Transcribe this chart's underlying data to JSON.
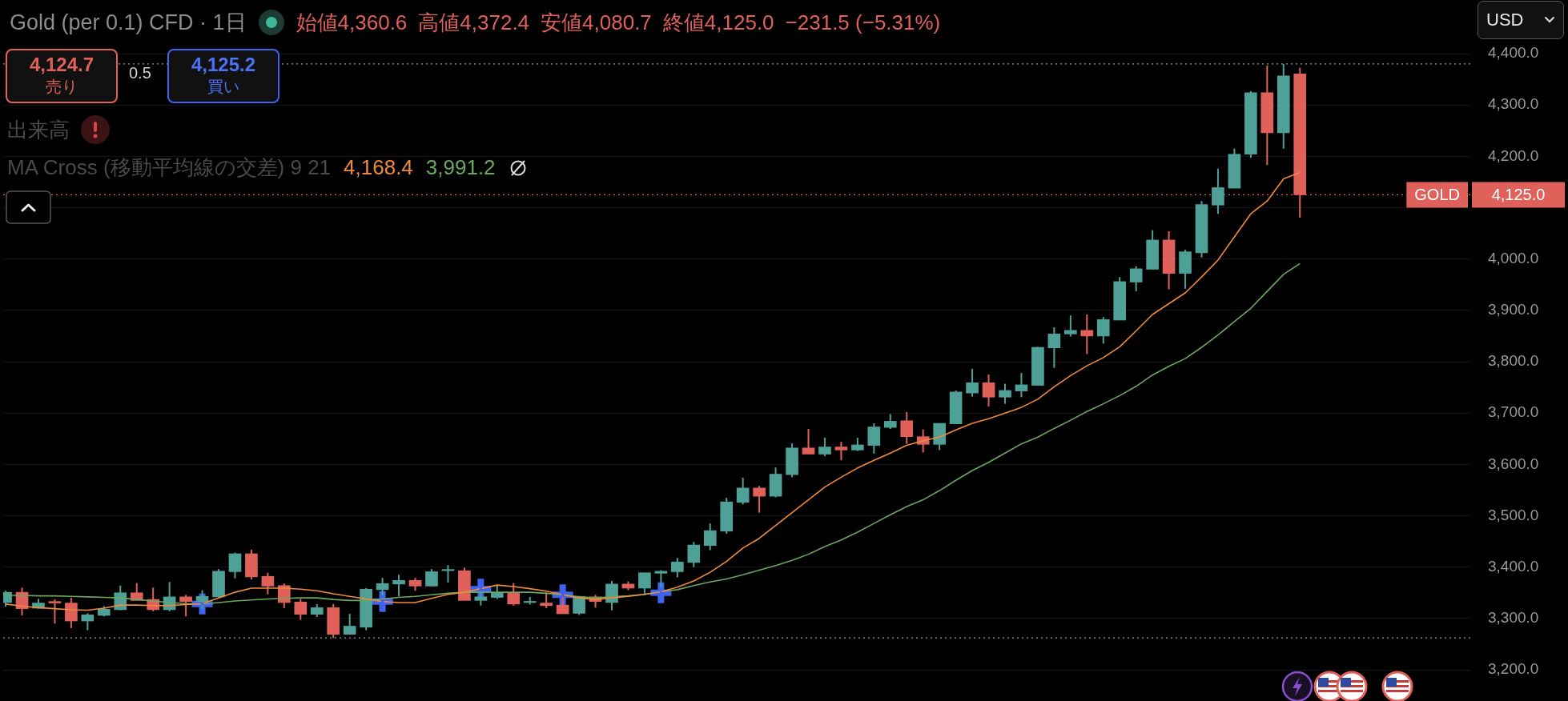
{
  "chart_data": {
    "type": "candlestick",
    "title": "Gold (per 0.1) CFD · 1日",
    "categories": [
      null,
      null,
      null,
      null,
      null,
      null,
      null,
      null,
      null,
      null,
      null,
      null,
      null,
      null,
      null,
      null,
      null,
      null,
      null,
      null,
      null,
      null,
      null,
      null,
      null,
      null,
      null,
      null,
      null,
      null,
      null,
      null,
      null,
      null,
      null,
      null,
      null,
      null,
      null,
      null,
      null,
      null,
      null,
      null,
      null,
      null,
      null,
      null,
      null,
      null,
      null,
      null,
      null,
      null,
      null,
      null,
      null,
      null,
      null,
      null,
      null,
      null,
      null,
      null,
      null,
      null,
      null,
      null,
      null,
      null,
      null,
      null,
      null,
      null,
      null,
      null,
      null,
      null,
      null,
      null
    ],
    "ohlc": [
      [
        3331,
        3354,
        3323,
        3351
      ],
      [
        3351,
        3360,
        3306,
        3319
      ],
      [
        3320,
        3338,
        3319,
        3330
      ],
      [
        3333,
        3337,
        3290,
        3330
      ],
      [
        3330,
        3340,
        3281,
        3295
      ],
      [
        3295,
        3310,
        3277,
        3307
      ],
      [
        3306,
        3324,
        3304,
        3318
      ],
      [
        3317,
        3364,
        3316,
        3350
      ],
      [
        3350,
        3369,
        3335,
        3335
      ],
      [
        3337,
        3360,
        3314,
        3317
      ],
      [
        3317,
        3371,
        3314,
        3342
      ],
      [
        3342,
        3346,
        3304,
        3333
      ],
      [
        3333,
        3355,
        3318,
        3343
      ],
      [
        3342,
        3396,
        3340,
        3392
      ],
      [
        3391,
        3428,
        3378,
        3426
      ],
      [
        3426,
        3434,
        3376,
        3381
      ],
      [
        3382,
        3389,
        3347,
        3363
      ],
      [
        3364,
        3368,
        3320,
        3331
      ],
      [
        3332,
        3338,
        3297,
        3308
      ],
      [
        3308,
        3328,
        3303,
        3321
      ],
      [
        3321,
        3328,
        3262,
        3269
      ],
      [
        3269,
        3309,
        3269,
        3285
      ],
      [
        3283,
        3359,
        3277,
        3357
      ],
      [
        3356,
        3379,
        3345,
        3368
      ],
      [
        3367,
        3385,
        3343,
        3374
      ],
      [
        3374,
        3379,
        3354,
        3363
      ],
      [
        3363,
        3396,
        3362,
        3391
      ],
      [
        3393,
        3404,
        3370,
        3395
      ],
      [
        3393,
        3399,
        3335,
        3335
      ],
      [
        3335,
        3351,
        3325,
        3342
      ],
      [
        3341,
        3364,
        3338,
        3350
      ],
      [
        3350,
        3369,
        3325,
        3328
      ],
      [
        3331,
        3342,
        3327,
        3333
      ],
      [
        3330,
        3351,
        3320,
        3325
      ],
      [
        3326,
        3341,
        3309,
        3309
      ],
      [
        3310,
        3344,
        3307,
        3343
      ],
      [
        3342,
        3346,
        3321,
        3333
      ],
      [
        3331,
        3373,
        3316,
        3367
      ],
      [
        3367,
        3372,
        3355,
        3359
      ],
      [
        3359,
        3389,
        3346,
        3389
      ],
      [
        3388,
        3394,
        3360,
        3392
      ],
      [
        3391,
        3418,
        3380,
        3410
      ],
      [
        3409,
        3449,
        3400,
        3443
      ],
      [
        3442,
        3485,
        3433,
        3471
      ],
      [
        3470,
        3535,
        3465,
        3527
      ],
      [
        3526,
        3574,
        3522,
        3554
      ],
      [
        3554,
        3558,
        3506,
        3538
      ],
      [
        3538,
        3594,
        3536,
        3581
      ],
      [
        3580,
        3641,
        3575,
        3632
      ],
      [
        3632,
        3669,
        3620,
        3620
      ],
      [
        3620,
        3652,
        3616,
        3634
      ],
      [
        3634,
        3644,
        3608,
        3628
      ],
      [
        3628,
        3652,
        3626,
        3638
      ],
      [
        3637,
        3680,
        3621,
        3673
      ],
      [
        3672,
        3698,
        3669,
        3684
      ],
      [
        3685,
        3702,
        3640,
        3654
      ],
      [
        3654,
        3668,
        3623,
        3639
      ],
      [
        3639,
        3680,
        3628,
        3680
      ],
      [
        3679,
        3744,
        3679,
        3741
      ],
      [
        3739,
        3786,
        3732,
        3759
      ],
      [
        3759,
        3775,
        3713,
        3731
      ],
      [
        3731,
        3757,
        3718,
        3744
      ],
      [
        3743,
        3778,
        3731,
        3755
      ],
      [
        3754,
        3829,
        3754,
        3828
      ],
      [
        3827,
        3867,
        3788,
        3854
      ],
      [
        3854,
        3890,
        3849,
        3861
      ],
      [
        3861,
        3892,
        3815,
        3850
      ],
      [
        3850,
        3887,
        3835,
        3882
      ],
      [
        3881,
        3965,
        3881,
        3956
      ],
      [
        3955,
        3986,
        3937,
        3981
      ],
      [
        3980,
        4056,
        3980,
        4037
      ],
      [
        4037,
        4054,
        3941,
        3972
      ],
      [
        3972,
        4018,
        3942,
        4014
      ],
      [
        4012,
        4113,
        4003,
        4106
      ],
      [
        4105,
        4176,
        4088,
        4139
      ],
      [
        4138,
        4215,
        4138,
        4204
      ],
      [
        4204,
        4327,
        4197,
        4324
      ],
      [
        4324,
        4377,
        4183,
        4246
      ],
      [
        4246,
        4380,
        4215,
        4356.5
      ],
      [
        4360.6,
        4372.4,
        4080.7,
        4125.0
      ]
    ],
    "colors": [
      "#4fa197",
      "#e0605a",
      "#4fa197",
      "#e0605a",
      "#e0605a",
      "#4fa197",
      "#4fa197",
      "#4fa197",
      "#e0605a",
      "#e0605a",
      "#4fa197",
      "#e0605a",
      "#4fa197",
      "#4fa197",
      "#4fa197",
      "#e0605a",
      "#e0605a",
      "#e0605a",
      "#e0605a",
      "#4fa197",
      "#e0605a",
      "#4fa197",
      "#4fa197",
      "#4fa197",
      "#4fa197",
      "#e0605a",
      "#4fa197",
      "#4fa197",
      "#e0605a",
      "#4fa197",
      "#4fa197",
      "#e0605a",
      "#4fa197",
      "#e0605a",
      "#e0605a",
      "#4fa197",
      "#e0605a",
      "#4fa197",
      "#e0605a",
      "#4fa197",
      "#4fa197",
      "#4fa197",
      "#4fa197",
      "#4fa197",
      "#4fa197",
      "#4fa197",
      "#e0605a",
      "#4fa197",
      "#4fa197",
      "#e0605a",
      "#4fa197",
      "#e0605a",
      "#4fa197",
      "#4fa197",
      "#4fa197",
      "#e0605a",
      "#e0605a",
      "#4fa197",
      "#4fa197",
      "#4fa197",
      "#e0605a",
      "#4fa197",
      "#4fa197",
      "#4fa197",
      "#4fa197",
      "#4fa197",
      "#e0605a",
      "#4fa197",
      "#4fa197",
      "#4fa197",
      "#4fa197",
      "#e0605a",
      "#4fa197",
      "#4fa197",
      "#4fa197",
      "#4fa197",
      "#4fa197",
      "#e0605a",
      "#4fa197",
      "#e0605a"
    ],
    "series": [
      {
        "type": "line",
        "color": "#f08a3c",
        "values": [
          3328,
          3324,
          3321,
          3319,
          3317,
          3316,
          3320,
          3326,
          3326,
          3325,
          3325,
          3327,
          3329,
          3340,
          3351,
          3359,
          3359,
          3359,
          3357,
          3354,
          3348,
          3343,
          3338,
          3333,
          3331,
          3331,
          3339,
          3347,
          3351,
          3358,
          3365,
          3362,
          3358,
          3353,
          3346,
          3340,
          3337,
          3340,
          3343,
          3347,
          3352,
          3361,
          3373,
          3390,
          3411,
          3437,
          3456,
          3481,
          3506,
          3531,
          3556,
          3575,
          3593,
          3608,
          3622,
          3637,
          3646,
          3653,
          3667,
          3680,
          3689,
          3700,
          3711,
          3727,
          3751,
          3773,
          3792,
          3808,
          3829,
          3860,
          3892,
          3913,
          3934,
          3965,
          3998,
          4043,
          4088,
          4113,
          4156,
          4168.4
        ]
      },
      {
        "type": "line",
        "color": "#6aa860",
        "values": [
          3345,
          3345,
          3344,
          3344,
          3343,
          3342,
          3341,
          3340,
          3337,
          3334,
          3331,
          3329,
          3328,
          3331,
          3334,
          3336,
          3338,
          3339,
          3340,
          3340,
          3337,
          3335,
          3335,
          3338,
          3341,
          3343,
          3346,
          3349,
          3351,
          3351,
          3351,
          3351,
          3351,
          3349,
          3346,
          3342,
          3340,
          3342,
          3344,
          3347,
          3352,
          3356,
          3364,
          3371,
          3377,
          3385,
          3394,
          3403,
          3413,
          3425,
          3440,
          3453,
          3468,
          3485,
          3502,
          3518,
          3531,
          3549,
          3569,
          3588,
          3604,
          3622,
          3640,
          3653,
          3670,
          3686,
          3703,
          3718,
          3734,
          3752,
          3774,
          3791,
          3806,
          3828,
          3852,
          3878,
          3904,
          3937,
          3970,
          3991.2
        ]
      },
      {
        "type": "scatter",
        "color": "#3d63f0",
        "marker": "cross",
        "values": [
          null,
          null,
          null,
          null,
          null,
          null,
          null,
          null,
          null,
          null,
          null,
          null,
          3328,
          null,
          null,
          null,
          null,
          null,
          null,
          null,
          null,
          null,
          null,
          3333,
          null,
          null,
          null,
          null,
          null,
          3357,
          null,
          null,
          null,
          null,
          3346,
          null,
          null,
          null,
          null,
          null,
          3350,
          null,
          null,
          null,
          null,
          null,
          null,
          null,
          null,
          null,
          null,
          null,
          null,
          null,
          null,
          null,
          null,
          null,
          null,
          null,
          null,
          null,
          null,
          null,
          null,
          null,
          null,
          null,
          null,
          null,
          null,
          null,
          null,
          null,
          null,
          null,
          null,
          null,
          null,
          null
        ]
      }
    ],
    "ylim": [
      3200,
      4400
    ],
    "yticks": [
      {
        "value": 3200,
        "label": "3,200.0"
      },
      {
        "value": 3300,
        "label": "3,300.0"
      },
      {
        "value": 3400,
        "label": "3,400.0"
      },
      {
        "value": 3500,
        "label": "3,500.0"
      },
      {
        "value": 3600,
        "label": "3,600.0"
      },
      {
        "value": 3700,
        "label": "3,700.0"
      },
      {
        "value": 3800,
        "label": "3,800.0"
      },
      {
        "value": 3900,
        "label": "3,900.0"
      },
      {
        "value": 4000,
        "label": "4,000.0"
      },
      {
        "value": 4100,
        "label": null
      },
      {
        "value": 4200,
        "label": "4,200.0"
      },
      {
        "value": 4300,
        "label": "4,300.0"
      },
      {
        "value": 4400,
        "label": "4,400.0"
      }
    ],
    "ref_lines": [
      {
        "axis": "y",
        "value": 4380,
        "color": "#9a9a9a",
        "line_style": "dotted"
      },
      {
        "axis": "y",
        "value": 3262,
        "color": "#9a9a9a",
        "line_style": "dotted"
      },
      {
        "axis": "y",
        "value": 4125.0,
        "label": "GOLD",
        "color": "#e0605a",
        "line_style": "dotted"
      }
    ],
    "annotations": [
      "始値4,360.6",
      "高値4,372.4",
      "安値4,080.7",
      "終値4,125.0",
      "−231.5 (−5.31%)",
      "4,124.7",
      "売り",
      "0.5",
      "4,125.2",
      "買い",
      "出来高",
      "MA Cross (移動平均線の交差) 9 21",
      "4,168.4",
      "3,991.2",
      "USD",
      "4,125.0"
    ],
    "grid": "y",
    "tick_labels": "y"
  }
}
